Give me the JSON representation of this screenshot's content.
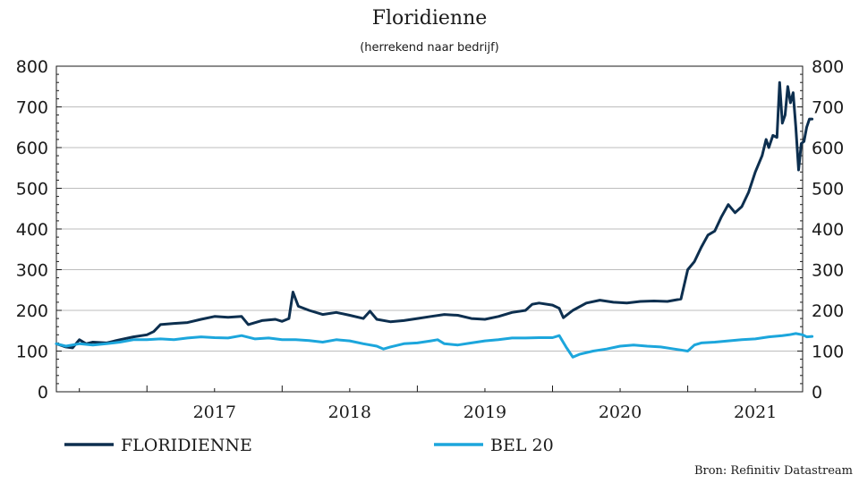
{
  "chart_data": {
    "type": "line",
    "title": "Floridienne",
    "subtitle": "(herrekend naar bedrijf)",
    "source": "Bron: Refinitiv Datastream",
    "x_range": [
      2016.33,
      2021.85
    ],
    "ylim": [
      0,
      800
    ],
    "yticks": [
      0,
      100,
      200,
      300,
      400,
      500,
      600,
      700,
      800
    ],
    "xticks": [
      {
        "label": "2017",
        "x": 2017.0
      },
      {
        "label": "2018",
        "x": 2018.0
      },
      {
        "label": "2019",
        "x": 2019.0
      },
      {
        "label": "2020",
        "x": 2020.0
      },
      {
        "label": "2021",
        "x": 2021.0
      }
    ],
    "y_axis_both_sides": true,
    "grid": "horizontal",
    "legend_position": "bottom",
    "series": [
      {
        "name": "FLORIDIENNE",
        "color": "#0d2f4f",
        "points": [
          [
            2016.33,
            118
          ],
          [
            2016.4,
            110
          ],
          [
            2016.45,
            108
          ],
          [
            2016.5,
            128
          ],
          [
            2016.55,
            118
          ],
          [
            2016.6,
            122
          ],
          [
            2016.7,
            120
          ],
          [
            2016.8,
            128
          ],
          [
            2016.9,
            135
          ],
          [
            2017.0,
            140
          ],
          [
            2017.05,
            148
          ],
          [
            2017.1,
            165
          ],
          [
            2017.2,
            168
          ],
          [
            2017.3,
            170
          ],
          [
            2017.4,
            178
          ],
          [
            2017.5,
            185
          ],
          [
            2017.6,
            183
          ],
          [
            2017.7,
            185
          ],
          [
            2017.75,
            165
          ],
          [
            2017.85,
            175
          ],
          [
            2017.95,
            178
          ],
          [
            2018.0,
            173
          ],
          [
            2018.05,
            180
          ],
          [
            2018.08,
            245
          ],
          [
            2018.12,
            210
          ],
          [
            2018.2,
            200
          ],
          [
            2018.3,
            190
          ],
          [
            2018.4,
            195
          ],
          [
            2018.5,
            188
          ],
          [
            2018.6,
            180
          ],
          [
            2018.65,
            198
          ],
          [
            2018.7,
            178
          ],
          [
            2018.8,
            172
          ],
          [
            2018.9,
            175
          ],
          [
            2019.0,
            180
          ],
          [
            2019.1,
            185
          ],
          [
            2019.2,
            190
          ],
          [
            2019.3,
            188
          ],
          [
            2019.4,
            180
          ],
          [
            2019.5,
            178
          ],
          [
            2019.6,
            185
          ],
          [
            2019.7,
            195
          ],
          [
            2019.8,
            200
          ],
          [
            2019.85,
            215
          ],
          [
            2019.9,
            218
          ],
          [
            2020.0,
            213
          ],
          [
            2020.05,
            205
          ],
          [
            2020.08,
            182
          ],
          [
            2020.15,
            200
          ],
          [
            2020.25,
            218
          ],
          [
            2020.35,
            225
          ],
          [
            2020.45,
            220
          ],
          [
            2020.55,
            218
          ],
          [
            2020.65,
            222
          ],
          [
            2020.75,
            223
          ],
          [
            2020.85,
            222
          ],
          [
            2020.9,
            225
          ],
          [
            2020.95,
            228
          ],
          [
            2021.0,
            300
          ],
          [
            2021.05,
            320
          ],
          [
            2021.1,
            355
          ],
          [
            2021.15,
            385
          ],
          [
            2021.2,
            395
          ],
          [
            2021.25,
            430
          ],
          [
            2021.3,
            460
          ],
          [
            2021.35,
            440
          ],
          [
            2021.4,
            455
          ],
          [
            2021.45,
            490
          ],
          [
            2021.5,
            540
          ],
          [
            2021.55,
            580
          ],
          [
            2021.58,
            620
          ],
          [
            2021.6,
            600
          ],
          [
            2021.63,
            630
          ],
          [
            2021.66,
            625
          ],
          [
            2021.68,
            760
          ],
          [
            2021.7,
            660
          ],
          [
            2021.72,
            680
          ],
          [
            2021.74,
            750
          ],
          [
            2021.76,
            710
          ],
          [
            2021.78,
            735
          ],
          [
            2021.8,
            650
          ],
          [
            2021.82,
            545
          ],
          [
            2021.84,
            610
          ],
          [
            2021.86,
            615
          ],
          [
            2021.88,
            650
          ],
          [
            2021.9,
            670
          ],
          [
            2021.92,
            670
          ]
        ]
      },
      {
        "name": "BEL 20",
        "color": "#1ca6dc",
        "points": [
          [
            2016.33,
            118
          ],
          [
            2016.4,
            112
          ],
          [
            2016.5,
            118
          ],
          [
            2016.6,
            115
          ],
          [
            2016.7,
            118
          ],
          [
            2016.8,
            122
          ],
          [
            2016.9,
            128
          ],
          [
            2017.0,
            128
          ],
          [
            2017.1,
            130
          ],
          [
            2017.2,
            128
          ],
          [
            2017.3,
            132
          ],
          [
            2017.4,
            135
          ],
          [
            2017.5,
            133
          ],
          [
            2017.6,
            132
          ],
          [
            2017.7,
            138
          ],
          [
            2017.8,
            130
          ],
          [
            2017.9,
            132
          ],
          [
            2018.0,
            128
          ],
          [
            2018.1,
            128
          ],
          [
            2018.2,
            126
          ],
          [
            2018.3,
            122
          ],
          [
            2018.4,
            128
          ],
          [
            2018.5,
            125
          ],
          [
            2018.6,
            118
          ],
          [
            2018.7,
            112
          ],
          [
            2018.75,
            105
          ],
          [
            2018.8,
            110
          ],
          [
            2018.9,
            118
          ],
          [
            2019.0,
            120
          ],
          [
            2019.1,
            125
          ],
          [
            2019.15,
            128
          ],
          [
            2019.2,
            118
          ],
          [
            2019.3,
            115
          ],
          [
            2019.4,
            120
          ],
          [
            2019.5,
            125
          ],
          [
            2019.6,
            128
          ],
          [
            2019.7,
            132
          ],
          [
            2019.8,
            132
          ],
          [
            2019.9,
            133
          ],
          [
            2020.0,
            133
          ],
          [
            2020.05,
            138
          ],
          [
            2020.1,
            110
          ],
          [
            2020.15,
            85
          ],
          [
            2020.2,
            92
          ],
          [
            2020.3,
            100
          ],
          [
            2020.4,
            105
          ],
          [
            2020.5,
            112
          ],
          [
            2020.6,
            115
          ],
          [
            2020.7,
            112
          ],
          [
            2020.8,
            110
          ],
          [
            2020.9,
            105
          ],
          [
            2021.0,
            100
          ],
          [
            2021.05,
            115
          ],
          [
            2021.1,
            120
          ],
          [
            2021.2,
            122
          ],
          [
            2021.3,
            125
          ],
          [
            2021.4,
            128
          ],
          [
            2021.5,
            130
          ],
          [
            2021.6,
            135
          ],
          [
            2021.7,
            138
          ],
          [
            2021.75,
            140
          ],
          [
            2021.8,
            143
          ],
          [
            2021.85,
            140
          ],
          [
            2021.88,
            135
          ],
          [
            2021.92,
            136
          ]
        ]
      }
    ]
  }
}
